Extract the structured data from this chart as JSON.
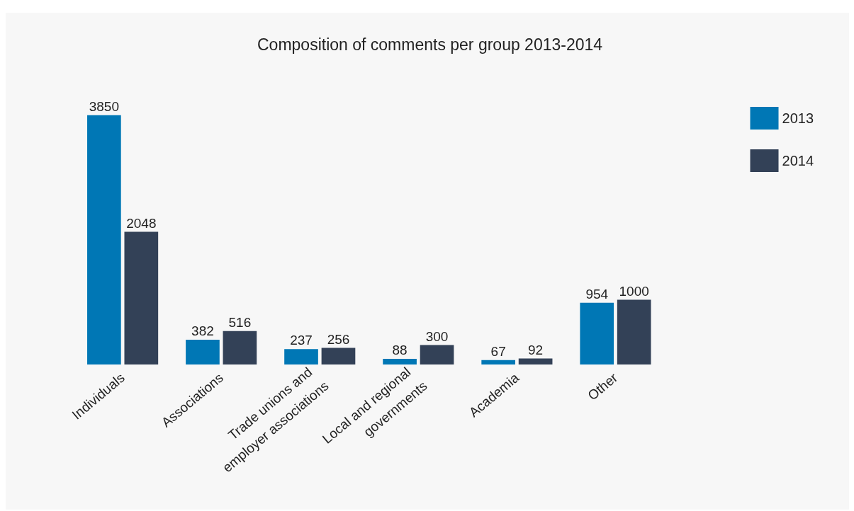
{
  "chart_data": {
    "type": "bar",
    "title": "Composition of comments per group 2013-2014",
    "categories": [
      "Individuals",
      "Associations",
      "Trade unions and employer associations",
      "Local and regional governments",
      "Academia",
      "Other"
    ],
    "series": [
      {
        "name": "2013",
        "color": "#0077b5",
        "values": [
          3850,
          382,
          237,
          88,
          67,
          954
        ]
      },
      {
        "name": "2014",
        "color": "#334157",
        "values": [
          2048,
          516,
          256,
          300,
          92,
          1000
        ]
      }
    ],
    "data_labels": true,
    "legend": "top right"
  }
}
